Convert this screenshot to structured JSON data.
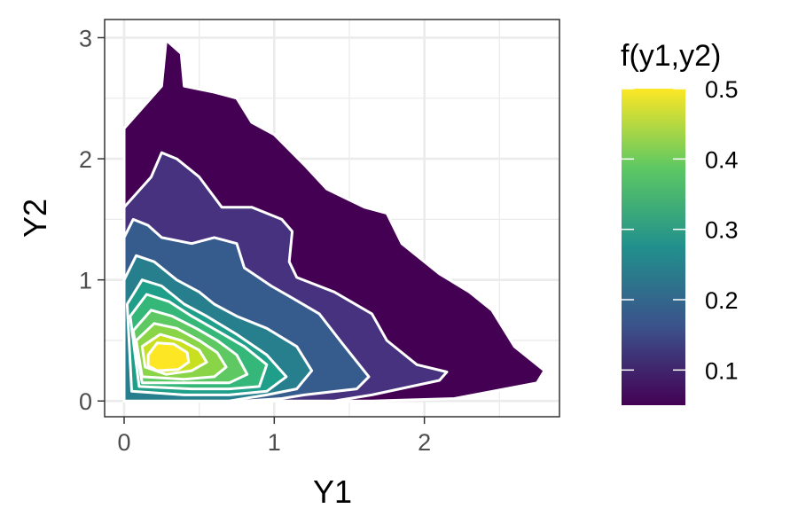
{
  "chart_data": {
    "type": "contour",
    "title": "",
    "xlabel": "Y1",
    "ylabel": "Y2",
    "xlim": [
      -0.13,
      2.9
    ],
    "ylim": [
      -0.13,
      3.15
    ],
    "x_ticks": [
      "0",
      "1",
      "2"
    ],
    "y_ticks": [
      "0",
      "1",
      "2",
      "3"
    ],
    "x_tick_values": [
      0,
      1,
      2
    ],
    "y_tick_values": [
      0,
      1,
      2,
      3
    ],
    "grid": true,
    "legend": {
      "title": "f(y1,y2)",
      "position": "right",
      "range": [
        0.05,
        0.5
      ],
      "breaks": [
        "0.1",
        "0.2",
        "0.3",
        "0.4",
        "0.5"
      ],
      "break_values": [
        0.1,
        0.2,
        0.3,
        0.4,
        0.5
      ],
      "colormap": [
        "#440154",
        "#3b528b",
        "#21908c",
        "#5dc863",
        "#fde725"
      ]
    },
    "contour_line_color": "#ffffff",
    "levels": [
      {
        "level": 0.05,
        "color": "#440154",
        "polygon": [
          [
            0.0,
            2.25
          ],
          [
            0.25,
            2.6
          ],
          [
            0.28,
            2.98
          ],
          [
            0.38,
            2.87
          ],
          [
            0.4,
            2.6
          ],
          [
            0.6,
            2.55
          ],
          [
            0.75,
            2.5
          ],
          [
            0.85,
            2.3
          ],
          [
            1.0,
            2.2
          ],
          [
            1.2,
            1.95
          ],
          [
            1.35,
            1.75
          ],
          [
            1.6,
            1.6
          ],
          [
            1.75,
            1.55
          ],
          [
            1.85,
            1.3
          ],
          [
            2.1,
            1.05
          ],
          [
            2.3,
            0.9
          ],
          [
            2.45,
            0.75
          ],
          [
            2.6,
            0.45
          ],
          [
            2.8,
            0.25
          ],
          [
            2.75,
            0.15
          ],
          [
            2.2,
            0.02
          ],
          [
            1.65,
            0.0
          ],
          [
            1.15,
            0.0
          ],
          [
            0.6,
            0.0
          ],
          [
            0.0,
            0.0
          ]
        ]
      },
      {
        "level": 0.1,
        "color": "#46327e",
        "polygon": [
          [
            0.0,
            1.6
          ],
          [
            0.18,
            1.85
          ],
          [
            0.25,
            2.05
          ],
          [
            0.35,
            2.0
          ],
          [
            0.5,
            1.85
          ],
          [
            0.65,
            1.6
          ],
          [
            0.85,
            1.6
          ],
          [
            1.05,
            1.5
          ],
          [
            1.12,
            1.4
          ],
          [
            1.1,
            1.15
          ],
          [
            1.15,
            1.02
          ],
          [
            1.4,
            0.9
          ],
          [
            1.65,
            0.72
          ],
          [
            1.75,
            0.5
          ],
          [
            1.95,
            0.3
          ],
          [
            2.15,
            0.24
          ],
          [
            2.1,
            0.17
          ],
          [
            1.65,
            0.05
          ],
          [
            1.4,
            0.0
          ],
          [
            1.0,
            0.0
          ],
          [
            0.5,
            0.0
          ],
          [
            0.0,
            0.0
          ]
        ]
      },
      {
        "level": 0.15,
        "color": "#365c8d",
        "polygon": [
          [
            0.0,
            1.35
          ],
          [
            0.06,
            1.5
          ],
          [
            0.16,
            1.45
          ],
          [
            0.25,
            1.35
          ],
          [
            0.45,
            1.3
          ],
          [
            0.6,
            1.35
          ],
          [
            0.75,
            1.3
          ],
          [
            0.8,
            1.1
          ],
          [
            0.98,
            0.95
          ],
          [
            1.12,
            0.85
          ],
          [
            1.3,
            0.72
          ],
          [
            1.45,
            0.48
          ],
          [
            1.63,
            0.2
          ],
          [
            1.55,
            0.1
          ],
          [
            1.2,
            0.05
          ],
          [
            1.05,
            0.02
          ],
          [
            0.8,
            0.0
          ],
          [
            0.0,
            0.0
          ]
        ]
      },
      {
        "level": 0.2,
        "color": "#277f8e",
        "polygon": [
          [
            0.0,
            1.0
          ],
          [
            0.08,
            1.2
          ],
          [
            0.2,
            1.15
          ],
          [
            0.35,
            1.0
          ],
          [
            0.5,
            0.9
          ],
          [
            0.6,
            0.8
          ],
          [
            0.75,
            0.7
          ],
          [
            0.95,
            0.6
          ],
          [
            1.15,
            0.45
          ],
          [
            1.25,
            0.25
          ],
          [
            1.15,
            0.1
          ],
          [
            0.95,
            0.05
          ],
          [
            0.7,
            0.0
          ],
          [
            0.0,
            0.0
          ]
        ]
      },
      {
        "level": 0.25,
        "color": "#1f9e89",
        "polygon": [
          [
            0.02,
            0.8
          ],
          [
            0.12,
            1.0
          ],
          [
            0.25,
            0.95
          ],
          [
            0.4,
            0.8
          ],
          [
            0.55,
            0.7
          ],
          [
            0.75,
            0.55
          ],
          [
            0.95,
            0.38
          ],
          [
            1.08,
            0.2
          ],
          [
            0.95,
            0.08
          ],
          [
            0.7,
            0.05
          ],
          [
            0.4,
            0.05
          ],
          [
            0.05,
            0.08
          ]
        ]
      },
      {
        "level": 0.3,
        "color": "#35b779",
        "polygon": [
          [
            0.04,
            0.7
          ],
          [
            0.15,
            0.88
          ],
          [
            0.3,
            0.82
          ],
          [
            0.45,
            0.7
          ],
          [
            0.62,
            0.58
          ],
          [
            0.8,
            0.45
          ],
          [
            0.95,
            0.3
          ],
          [
            0.9,
            0.12
          ],
          [
            0.7,
            0.1
          ],
          [
            0.45,
            0.1
          ],
          [
            0.1,
            0.12
          ]
        ]
      },
      {
        "level": 0.35,
        "color": "#5ec962",
        "polygon": [
          [
            0.06,
            0.58
          ],
          [
            0.18,
            0.75
          ],
          [
            0.32,
            0.7
          ],
          [
            0.48,
            0.6
          ],
          [
            0.62,
            0.5
          ],
          [
            0.75,
            0.38
          ],
          [
            0.82,
            0.22
          ],
          [
            0.7,
            0.15
          ],
          [
            0.45,
            0.15
          ],
          [
            0.12,
            0.15
          ]
        ]
      },
      {
        "level": 0.4,
        "color": "#8ad547",
        "polygon": [
          [
            0.08,
            0.5
          ],
          [
            0.2,
            0.64
          ],
          [
            0.35,
            0.6
          ],
          [
            0.5,
            0.5
          ],
          [
            0.62,
            0.4
          ],
          [
            0.68,
            0.28
          ],
          [
            0.6,
            0.2
          ],
          [
            0.4,
            0.18
          ],
          [
            0.12,
            0.2
          ]
        ]
      },
      {
        "level": 0.45,
        "color": "#c8e020",
        "polygon": [
          [
            0.12,
            0.45
          ],
          [
            0.24,
            0.55
          ],
          [
            0.38,
            0.5
          ],
          [
            0.5,
            0.42
          ],
          [
            0.55,
            0.32
          ],
          [
            0.45,
            0.25
          ],
          [
            0.28,
            0.22
          ],
          [
            0.14,
            0.28
          ]
        ]
      },
      {
        "level": 0.5,
        "color": "#fde725",
        "polygon": [
          [
            0.16,
            0.38
          ],
          [
            0.22,
            0.48
          ],
          [
            0.33,
            0.47
          ],
          [
            0.42,
            0.4
          ],
          [
            0.43,
            0.32
          ],
          [
            0.36,
            0.26
          ],
          [
            0.22,
            0.25
          ],
          [
            0.16,
            0.29
          ]
        ]
      }
    ]
  }
}
